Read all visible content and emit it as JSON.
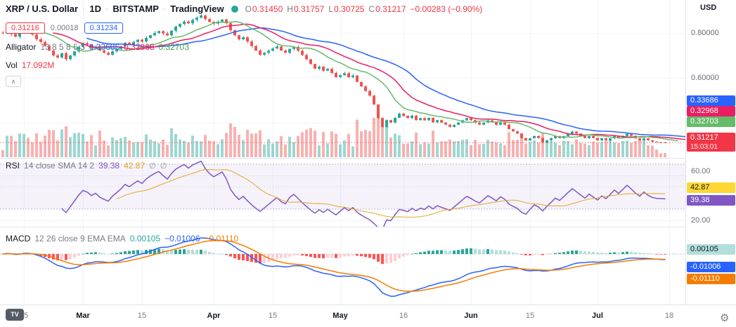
{
  "header": {
    "symbol": "XRP / U.S. Dollar",
    "sep": "·",
    "interval": "1D",
    "exchange": "BITSTAMP",
    "brand": "TradingView",
    "brand_short": "TV",
    "ohlc": {
      "o_label": "O",
      "o": "0.31450",
      "h_label": "H",
      "h": "0.31757",
      "l_label": "L",
      "l": "0.30725",
      "c_label": "C",
      "c": "0.31217",
      "change": "−0.00283 (−0.90%)"
    },
    "bid": "0.31216",
    "spread": "0.00018",
    "ask": "0.31234"
  },
  "legends": {
    "alligator": {
      "name": "Alligator",
      "params": "13 8 5 8 5 3",
      "jaw": "0.33686",
      "teeth": "0.32968",
      "lips": "0.32703"
    },
    "volume": {
      "name": "Vol",
      "value": "17.092M"
    },
    "rsi": {
      "name": "RSI",
      "params": "14 close SMA 14 2",
      "value": "39.38",
      "ma": "42.87"
    },
    "macd": {
      "name": "MACD",
      "params": "12 26 close 9 EMA EMA",
      "hist": "0.00105",
      "macd": "−0.01006",
      "signal": "−0.01110"
    }
  },
  "axis": {
    "currency": "USD",
    "badges": {
      "jaw": "0.33686",
      "teeth": "0.32968",
      "lips": "0.32703",
      "last_price": "0.31217",
      "countdown": "15:03:01",
      "rsi_ma": "42.87",
      "rsi": "39.38",
      "macd_hist": "0.00105",
      "macd": "-0.01006",
      "macd_signal": "-0.01110"
    }
  },
  "icons": {
    "collapse": "∧",
    "gear": "⚙",
    "hidden": "∅"
  },
  "colors": {
    "up": "#26a69a",
    "down": "#ef5350",
    "vol_up": "rgba(38,166,154,0.45)",
    "vol_down": "rgba(239,83,80,0.45)",
    "jaw": "#2962ff",
    "teeth": "#e91e63",
    "lips": "#66bb6a",
    "rsi": "#7e57c2",
    "rsi_ma": "#e3a827",
    "macd": "#2962ff",
    "signal": "#f57c00",
    "hist_grow_above": "#26a69a",
    "hist_fall_above": "#b2dfdb",
    "hist_grow_below": "#ffcdd2",
    "hist_fall_below": "#ff5252",
    "last": "#f23645"
  },
  "chart_data": {
    "type": "candlestick",
    "title": "XRP / U.S. Dollar",
    "symbol": "XRP/USD",
    "exchange": "BITSTAMP",
    "interval": "1D",
    "price_axis": {
      "labels": [
        {
          "text": "0.80000",
          "value": 0.8
        },
        {
          "text": "0.60000",
          "value": 0.6
        }
      ],
      "approx_visible_range": [
        0.29,
        0.94
      ]
    },
    "ohlc_today": {
      "open": 0.3145,
      "high": 0.31757,
      "low": 0.30725,
      "close": 0.31217,
      "change": -0.00283,
      "change_pct": -0.9
    },
    "closes": [
      0.798,
      0.812,
      0.795,
      0.783,
      0.8,
      0.818,
      0.802,
      0.793,
      0.772,
      0.76,
      0.742,
      0.722,
      0.7,
      0.691,
      0.71,
      0.683,
      0.7,
      0.718,
      0.738,
      0.755,
      0.748,
      0.732,
      0.74,
      0.722,
      0.712,
      0.703,
      0.718,
      0.729,
      0.741,
      0.757,
      0.749,
      0.76,
      0.77,
      0.762,
      0.778,
      0.79,
      0.8,
      0.808,
      0.798,
      0.789,
      0.81,
      0.828,
      0.84,
      0.851,
      0.843,
      0.858,
      0.868,
      0.878,
      0.862,
      0.85,
      0.842,
      0.851,
      0.86,
      0.843,
      0.812,
      0.79,
      0.772,
      0.781,
      0.762,
      0.742,
      0.722,
      0.703,
      0.712,
      0.721,
      0.731,
      0.74,
      0.722,
      0.712,
      0.729,
      0.738,
      0.721,
      0.702,
      0.683,
      0.662,
      0.641,
      0.65,
      0.632,
      0.64,
      0.622,
      0.603,
      0.612,
      0.621,
      0.603,
      0.611,
      0.582,
      0.562,
      0.542,
      0.521,
      0.482,
      0.421,
      0.381,
      0.412,
      0.401,
      0.422,
      0.441,
      0.431,
      0.421,
      0.432,
      0.412,
      0.421,
      0.411,
      0.422,
      0.402,
      0.412,
      0.401,
      0.392,
      0.382,
      0.391,
      0.401,
      0.411,
      0.421,
      0.412,
      0.401,
      0.392,
      0.401,
      0.411,
      0.402,
      0.391,
      0.401,
      0.392,
      0.372,
      0.362,
      0.352,
      0.332,
      0.321,
      0.331,
      0.341,
      0.332,
      0.312,
      0.322,
      0.331,
      0.341,
      0.332,
      0.341,
      0.351,
      0.361,
      0.352,
      0.342,
      0.332,
      0.341,
      0.332,
      0.322,
      0.331,
      0.322,
      0.331,
      0.341,
      0.332,
      0.341,
      0.351,
      0.342,
      0.331,
      0.322,
      0.331,
      0.322,
      0.316,
      0.3135,
      0.3128,
      0.31217
    ],
    "time_ticks": [
      {
        "label": "15",
        "i": 5,
        "major": false
      },
      {
        "label": "Mar",
        "i": 19,
        "major": true
      },
      {
        "label": "15",
        "i": 33,
        "major": false
      },
      {
        "label": "Apr",
        "i": 50,
        "major": true
      },
      {
        "label": "15",
        "i": 64,
        "major": false
      },
      {
        "label": "May",
        "i": 80,
        "major": true
      },
      {
        "label": "16",
        "i": 95,
        "major": false
      },
      {
        "label": "Jun",
        "i": 111,
        "major": true
      },
      {
        "label": "15",
        "i": 125,
        "major": false
      },
      {
        "label": "Jul",
        "i": 141,
        "major": true
      },
      {
        "label": "18",
        "i": 158,
        "major": false
      }
    ],
    "indicators": {
      "alligator": {
        "settings": [
          13,
          8,
          5,
          8,
          5,
          3
        ],
        "jaw_last": 0.33686,
        "teeth_last": 0.32968,
        "lips_last": 0.32703
      },
      "volume": {
        "last_label": "17.092M"
      },
      "rsi": {
        "length": 14,
        "smoothing": "SMA 14",
        "last": 39.38,
        "ma_last": 42.87,
        "bands": [
          30,
          70
        ],
        "scale_labels": [
          "60.00",
          "20.00"
        ]
      },
      "macd": {
        "fast": 12,
        "slow": 26,
        "signal_len": 9,
        "hist_last": 0.00105,
        "macd_last": -0.01006,
        "signal_last": -0.0111
      }
    }
  }
}
